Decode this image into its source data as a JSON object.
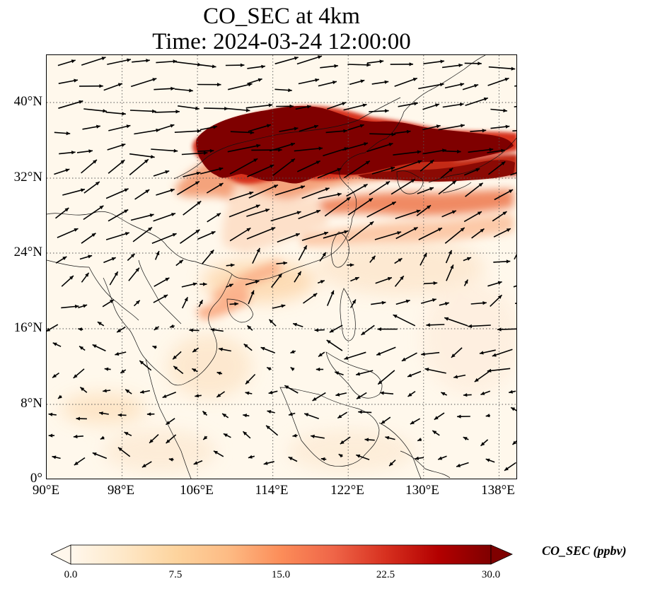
{
  "title": {
    "line1": "CO_SEC at 4km",
    "line2": "Time: 2024-03-24 12:00:00"
  },
  "map": {
    "lat_labels": [
      "40°N",
      "32°N",
      "24°N",
      "16°N",
      "8°N",
      "0°"
    ],
    "lon_labels": [
      "90°E",
      "98°E",
      "106°E",
      "114°E",
      "122°E",
      "130°E",
      "138°E"
    ],
    "extent": {
      "lon": [
        90,
        140
      ],
      "lat": [
        0,
        45
      ]
    },
    "field": "CO_SEC (ppbv)",
    "plume_color": "#7f0000",
    "background_color": "#fff8ec",
    "overlay": "wind vectors",
    "grid": "dotted"
  },
  "colorbar": {
    "label": "CO_SEC (ppbv)",
    "ticks": [
      "0.0",
      "7.5",
      "15.0",
      "22.5",
      "30.0"
    ],
    "range": [
      0,
      30
    ],
    "colormap": "OrRd",
    "extend": "both"
  }
}
